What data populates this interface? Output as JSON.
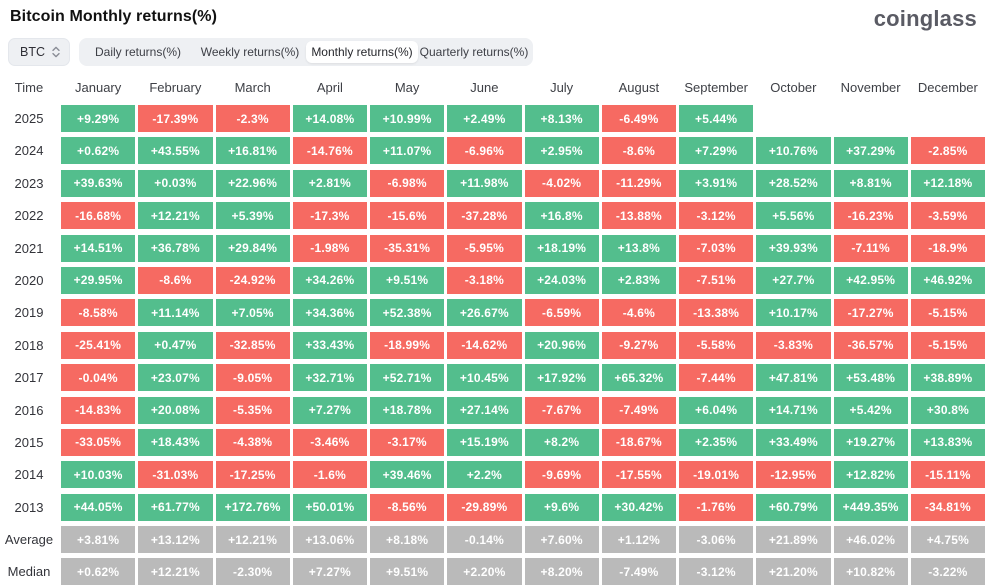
{
  "page": {
    "title": "Bitcoin Monthly returns(%)",
    "logo_text": "coinglass"
  },
  "toolbar": {
    "symbol_select": {
      "value": "BTC"
    },
    "tabs": [
      {
        "label": "Daily returns(%)",
        "active": false
      },
      {
        "label": "Weekly returns(%)",
        "active": false
      },
      {
        "label": "Monthly returns(%)",
        "active": true
      },
      {
        "label": "Quarterly returns(%)",
        "active": false
      }
    ]
  },
  "colors": {
    "positive": "#53be8d",
    "negative": "#f66a62",
    "neutral": "#bababa"
  },
  "chart_data": {
    "type": "table",
    "time_label": "Time",
    "columns": [
      "January",
      "February",
      "March",
      "April",
      "May",
      "June",
      "July",
      "August",
      "September",
      "October",
      "November",
      "December"
    ],
    "rows": [
      {
        "label": "2025",
        "kind": "year",
        "values": [
          "+9.29%",
          "-17.39%",
          "-2.3%",
          "+14.08%",
          "+10.99%",
          "+2.49%",
          "+8.13%",
          "-6.49%",
          "+5.44%",
          "",
          "",
          ""
        ]
      },
      {
        "label": "2024",
        "kind": "year",
        "values": [
          "+0.62%",
          "+43.55%",
          "+16.81%",
          "-14.76%",
          "+11.07%",
          "-6.96%",
          "+2.95%",
          "-8.6%",
          "+7.29%",
          "+10.76%",
          "+37.29%",
          "-2.85%"
        ]
      },
      {
        "label": "2023",
        "kind": "year",
        "values": [
          "+39.63%",
          "+0.03%",
          "+22.96%",
          "+2.81%",
          "-6.98%",
          "+11.98%",
          "-4.02%",
          "-11.29%",
          "+3.91%",
          "+28.52%",
          "+8.81%",
          "+12.18%"
        ]
      },
      {
        "label": "2022",
        "kind": "year",
        "values": [
          "-16.68%",
          "+12.21%",
          "+5.39%",
          "-17.3%",
          "-15.6%",
          "-37.28%",
          "+16.8%",
          "-13.88%",
          "-3.12%",
          "+5.56%",
          "-16.23%",
          "-3.59%"
        ]
      },
      {
        "label": "2021",
        "kind": "year",
        "values": [
          "+14.51%",
          "+36.78%",
          "+29.84%",
          "-1.98%",
          "-35.31%",
          "-5.95%",
          "+18.19%",
          "+13.8%",
          "-7.03%",
          "+39.93%",
          "-7.11%",
          "-18.9%"
        ]
      },
      {
        "label": "2020",
        "kind": "year",
        "values": [
          "+29.95%",
          "-8.6%",
          "-24.92%",
          "+34.26%",
          "+9.51%",
          "-3.18%",
          "+24.03%",
          "+2.83%",
          "-7.51%",
          "+27.7%",
          "+42.95%",
          "+46.92%"
        ]
      },
      {
        "label": "2019",
        "kind": "year",
        "values": [
          "-8.58%",
          "+11.14%",
          "+7.05%",
          "+34.36%",
          "+52.38%",
          "+26.67%",
          "-6.59%",
          "-4.6%",
          "-13.38%",
          "+10.17%",
          "-17.27%",
          "-5.15%"
        ]
      },
      {
        "label": "2018",
        "kind": "year",
        "values": [
          "-25.41%",
          "+0.47%",
          "-32.85%",
          "+33.43%",
          "-18.99%",
          "-14.62%",
          "+20.96%",
          "-9.27%",
          "-5.58%",
          "-3.83%",
          "-36.57%",
          "-5.15%"
        ]
      },
      {
        "label": "2017",
        "kind": "year",
        "values": [
          "-0.04%",
          "+23.07%",
          "-9.05%",
          "+32.71%",
          "+52.71%",
          "+10.45%",
          "+17.92%",
          "+65.32%",
          "-7.44%",
          "+47.81%",
          "+53.48%",
          "+38.89%"
        ]
      },
      {
        "label": "2016",
        "kind": "year",
        "values": [
          "-14.83%",
          "+20.08%",
          "-5.35%",
          "+7.27%",
          "+18.78%",
          "+27.14%",
          "-7.67%",
          "-7.49%",
          "+6.04%",
          "+14.71%",
          "+5.42%",
          "+30.8%"
        ]
      },
      {
        "label": "2015",
        "kind": "year",
        "values": [
          "-33.05%",
          "+18.43%",
          "-4.38%",
          "-3.46%",
          "-3.17%",
          "+15.19%",
          "+8.2%",
          "-18.67%",
          "+2.35%",
          "+33.49%",
          "+19.27%",
          "+13.83%"
        ]
      },
      {
        "label": "2014",
        "kind": "year",
        "values": [
          "+10.03%",
          "-31.03%",
          "-17.25%",
          "-1.6%",
          "+39.46%",
          "+2.2%",
          "-9.69%",
          "-17.55%",
          "-19.01%",
          "-12.95%",
          "+12.82%",
          "-15.11%"
        ]
      },
      {
        "label": "2013",
        "kind": "year",
        "values": [
          "+44.05%",
          "+61.77%",
          "+172.76%",
          "+50.01%",
          "-8.56%",
          "-29.89%",
          "+9.6%",
          "+30.42%",
          "-1.76%",
          "+60.79%",
          "+449.35%",
          "-34.81%"
        ]
      },
      {
        "label": "Average",
        "kind": "stat",
        "values": [
          "+3.81%",
          "+13.12%",
          "+12.21%",
          "+13.06%",
          "+8.18%",
          "-0.14%",
          "+7.60%",
          "+1.12%",
          "-3.06%",
          "+21.89%",
          "+46.02%",
          "+4.75%"
        ]
      },
      {
        "label": "Median",
        "kind": "stat",
        "values": [
          "+0.62%",
          "+12.21%",
          "-2.30%",
          "+7.27%",
          "+9.51%",
          "+2.20%",
          "+8.20%",
          "-7.49%",
          "-3.12%",
          "+21.20%",
          "+10.82%",
          "-3.22%"
        ]
      }
    ]
  }
}
